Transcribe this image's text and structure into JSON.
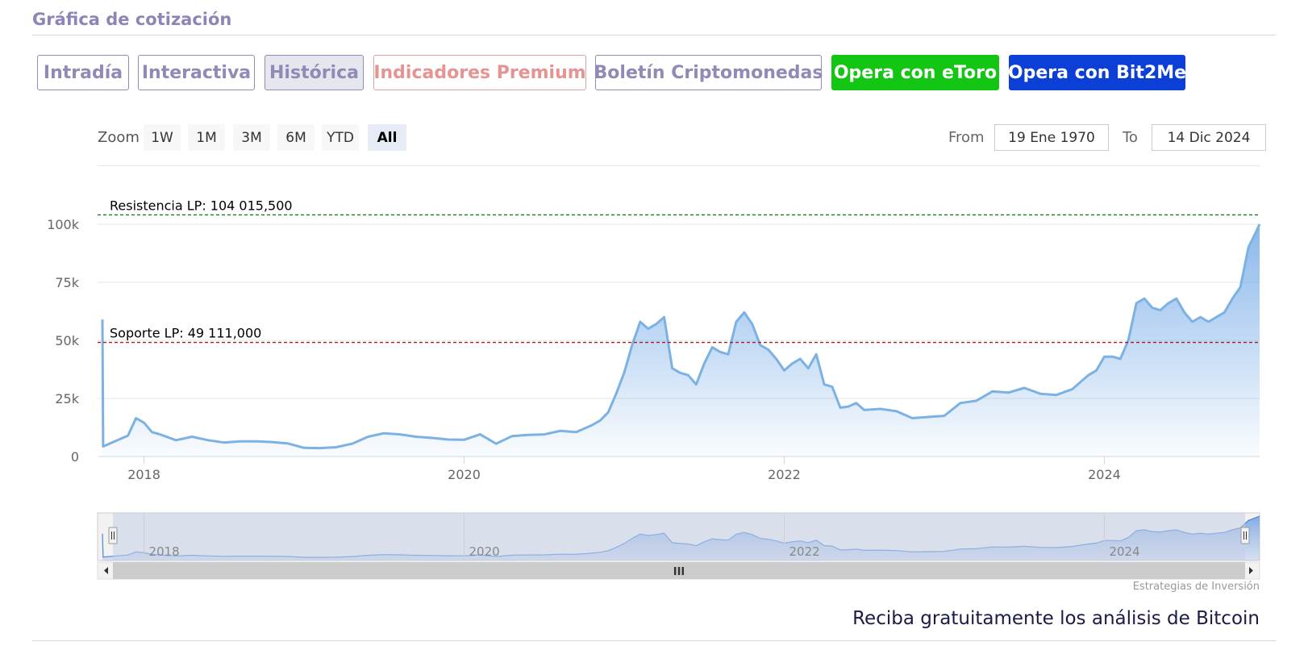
{
  "section_title": "Gráfica de cotización",
  "tabs": [
    {
      "label": "Intradía",
      "style": "outline"
    },
    {
      "label": "Interactiva",
      "style": "outline"
    },
    {
      "label": "Histórica",
      "style": "active"
    },
    {
      "label": "Indicadores Premium",
      "style": "premium"
    },
    {
      "label": "Boletín Criptomonedas",
      "style": "outline"
    },
    {
      "label": "Opera con eToro",
      "style": "etoro"
    },
    {
      "label": "Opera con Bit2Me",
      "style": "bit2me"
    }
  ],
  "zoom": {
    "label": "Zoom",
    "buttons": [
      "1W",
      "1M",
      "3M",
      "6M",
      "YTD",
      "All"
    ],
    "selected": "All"
  },
  "range": {
    "from_label": "From",
    "from_value": "19 Ene 1970",
    "to_label": "To",
    "to_value": "14 Dic 2024"
  },
  "colors": {
    "series_line": "#7cb2e3",
    "area_top": "#84b4ea",
    "resistance": "#1a7a1a",
    "support": "#a61c1c",
    "etoro": "#13c613",
    "bit2me": "#0b3fd6"
  },
  "chart_data": {
    "type": "area",
    "ylim": [
      0,
      100000
    ],
    "y_ticks": [
      0,
      25000,
      50000,
      75000,
      100000
    ],
    "y_tick_labels": [
      "0",
      "25k",
      "50k",
      "75k",
      "100k"
    ],
    "x_ticks": [
      2018,
      2020,
      2022,
      2024
    ],
    "x_tick_labels": [
      "2018",
      "2020",
      "2022",
      "2024"
    ],
    "grid": true,
    "lines": [
      {
        "label": "Resistencia LP: 104 015,500",
        "value": 104015.5,
        "style": "dashed",
        "color": "#1a7a1a"
      },
      {
        "label": "Soporte LP: 49 111,000",
        "value": 49111,
        "style": "dashed",
        "color": "#a61c1c"
      }
    ],
    "series": [
      {
        "x": [
          2017.74,
          2017.745,
          2017.8,
          2017.9,
          2017.95,
          2018.0,
          2018.05,
          2018.1,
          2018.2,
          2018.3,
          2018.4,
          2018.5,
          2018.6,
          2018.7,
          2018.8,
          2018.9,
          2019.0,
          2019.1,
          2019.2,
          2019.3,
          2019.4,
          2019.5,
          2019.6,
          2019.7,
          2019.8,
          2019.9,
          2020.0,
          2020.1,
          2020.2,
          2020.3,
          2020.4,
          2020.5,
          2020.6,
          2020.7,
          2020.8,
          2020.85,
          2020.9,
          2020.95,
          2021.0,
          2021.05,
          2021.1,
          2021.15,
          2021.2,
          2021.25,
          2021.3,
          2021.35,
          2021.4,
          2021.45,
          2021.5,
          2021.55,
          2021.6,
          2021.65,
          2021.7,
          2021.75,
          2021.8,
          2021.85,
          2021.9,
          2021.95,
          2022.0,
          2022.05,
          2022.1,
          2022.15,
          2022.2,
          2022.25,
          2022.3,
          2022.35,
          2022.4,
          2022.45,
          2022.5,
          2022.6,
          2022.7,
          2022.8,
          2022.9,
          2023.0,
          2023.1,
          2023.2,
          2023.3,
          2023.4,
          2023.5,
          2023.6,
          2023.7,
          2023.8,
          2023.85,
          2023.9,
          2023.95,
          2024.0,
          2024.05,
          2024.1,
          2024.15,
          2024.2,
          2024.25,
          2024.3,
          2024.35,
          2024.4,
          2024.45,
          2024.5,
          2024.55,
          2024.6,
          2024.65,
          2024.7,
          2024.75,
          2024.8,
          2024.85,
          2024.9,
          2024.95,
          2024.97
        ],
        "values": [
          59000,
          4300,
          6000,
          9000,
          16500,
          14500,
          10500,
          9500,
          7000,
          8500,
          7000,
          6000,
          6500,
          6500,
          6200,
          5600,
          3700,
          3600,
          4000,
          5500,
          8500,
          10000,
          9500,
          8500,
          8000,
          7300,
          7200,
          9500,
          5500,
          8800,
          9300,
          9500,
          11000,
          10500,
          13500,
          15500,
          19000,
          27000,
          36000,
          48000,
          58000,
          55000,
          57000,
          60000,
          38000,
          36000,
          35000,
          31000,
          40000,
          47000,
          45000,
          44000,
          58000,
          62000,
          57000,
          48000,
          46000,
          42000,
          37000,
          40000,
          42000,
          38000,
          44000,
          31000,
          30000,
          21000,
          21500,
          23000,
          20000,
          20500,
          19500,
          16500,
          17000,
          17500,
          23000,
          24000,
          28000,
          27500,
          29500,
          27000,
          26500,
          29000,
          32000,
          35000,
          37000,
          43000,
          43000,
          42000,
          50000,
          66000,
          68000,
          64000,
          63000,
          66000,
          68000,
          62000,
          58000,
          60000,
          58000,
          60000,
          62000,
          68000,
          73000,
          90000,
          97000,
          100000
        ]
      }
    ]
  },
  "navigator": {
    "x_tick_labels": [
      "2018",
      "2020",
      "2022",
      "2024"
    ],
    "scroll_handle": "III"
  },
  "credits": "Estrategias de Inversión",
  "cta": "Reciba gratuitamente los análisis de Bitcoin"
}
